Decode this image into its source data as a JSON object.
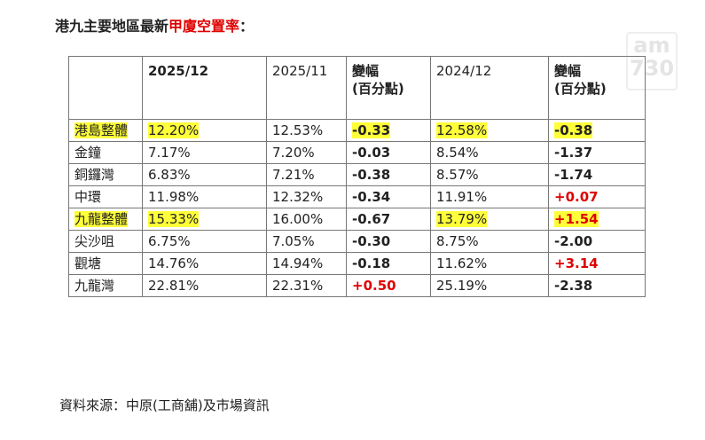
{
  "header": {
    "title_parts": [
      "港九主要地區最新",
      "甲廈空置率",
      "："
    ],
    "watermark": [
      "am",
      "730"
    ]
  },
  "table": {
    "columns": [
      "",
      "2025/12",
      "2025/11",
      "變幅\n(百分點)",
      "2024/12",
      "變幅\n(百分點)"
    ],
    "bold_columns": [
      1,
      3,
      5
    ],
    "rows": [
      {
        "cells": [
          "港島整體",
          "12.20%",
          "12.53%",
          "-0.33",
          "12.58%",
          "-0.38"
        ],
        "highlight": [
          0,
          1,
          3,
          4,
          5
        ]
      },
      {
        "cells": [
          "金鐘",
          "7.17%",
          "7.20%",
          "-0.03",
          "8.54%",
          "-1.37"
        ],
        "highlight": []
      },
      {
        "cells": [
          "銅鑼灣",
          "6.83%",
          "7.21%",
          "-0.38",
          "8.57%",
          "-1.74"
        ],
        "highlight": []
      },
      {
        "cells": [
          "中環",
          "11.98%",
          "12.32%",
          "-0.34",
          "11.91%",
          "+0.07"
        ],
        "highlight": []
      },
      {
        "cells": [
          "九龍整體",
          "15.33%",
          "16.00%",
          "-0.67",
          "13.79%",
          "+1.54"
        ],
        "highlight": [
          0,
          1,
          4,
          5
        ]
      },
      {
        "cells": [
          "尖沙咀",
          "6.75%",
          "7.05%",
          "-0.30",
          "8.75%",
          "-2.00"
        ],
        "highlight": []
      },
      {
        "cells": [
          "觀塘",
          "14.76%",
          "14.94%",
          "-0.18",
          "11.62%",
          "+3.14"
        ],
        "highlight": []
      },
      {
        "cells": [
          "九龍灣",
          "22.81%",
          "22.31%",
          "+0.50",
          "25.19%",
          "-2.38"
        ],
        "highlight": []
      }
    ]
  },
  "footer": {
    "source": "資料來源：中原(工商舖)及市場資訊"
  }
}
